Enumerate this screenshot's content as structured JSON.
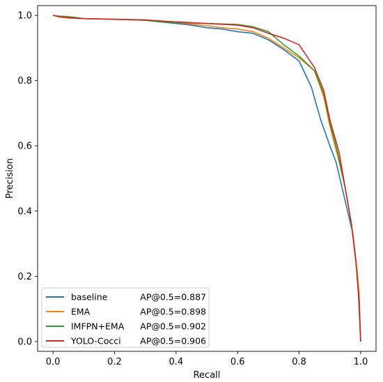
{
  "chart_data": {
    "type": "line",
    "xlabel": "Recall",
    "ylabel": "Precision",
    "xlim": [
      -0.05,
      1.05
    ],
    "ylim": [
      -0.03,
      1.03
    ],
    "xticks": [
      0.0,
      0.2,
      0.4,
      0.6,
      0.8,
      1.0
    ],
    "xtick_labels": [
      "0.0",
      "0.2",
      "0.4",
      "0.6",
      "0.8",
      "1.0"
    ],
    "yticks": [
      0.0,
      0.2,
      0.4,
      0.6,
      0.8,
      1.0
    ],
    "ytick_labels": [
      "0.0",
      "0.2",
      "0.4",
      "0.6",
      "0.8",
      "1.0"
    ],
    "grid": false,
    "legend_position": "lower-left",
    "series": [
      {
        "name": "baseline",
        "ap_label": "AP@0.5=0.887",
        "color": "#1f77b4",
        "x": [
          0.0,
          0.02,
          0.05,
          0.1,
          0.2,
          0.3,
          0.35,
          0.4,
          0.45,
          0.5,
          0.55,
          0.6,
          0.65,
          0.7,
          0.75,
          0.8,
          0.84,
          0.87,
          0.9,
          0.92,
          0.94,
          0.96,
          0.975,
          0.99,
          1.0
        ],
        "y": [
          1.0,
          0.995,
          0.992,
          0.99,
          0.988,
          0.985,
          0.98,
          0.975,
          0.97,
          0.962,
          0.958,
          0.95,
          0.945,
          0.925,
          0.895,
          0.86,
          0.78,
          0.68,
          0.6,
          0.55,
          0.47,
          0.39,
          0.33,
          0.2,
          0.0
        ]
      },
      {
        "name": "EMA",
        "ap_label": "AP@0.5=0.898",
        "color": "#ff7f0e",
        "x": [
          0.0,
          0.02,
          0.05,
          0.1,
          0.2,
          0.3,
          0.4,
          0.5,
          0.55,
          0.6,
          0.65,
          0.7,
          0.75,
          0.8,
          0.85,
          0.88,
          0.9,
          0.925,
          0.95,
          0.97,
          0.985,
          0.995,
          1.0
        ],
        "y": [
          1.0,
          0.995,
          0.992,
          0.99,
          0.988,
          0.986,
          0.978,
          0.968,
          0.962,
          0.958,
          0.95,
          0.93,
          0.9,
          0.87,
          0.83,
          0.75,
          0.66,
          0.57,
          0.47,
          0.36,
          0.25,
          0.15,
          0.0
        ]
      },
      {
        "name": "IMFPN+EMA",
        "ap_label": "AP@0.5=0.902",
        "color": "#2ca02c",
        "x": [
          0.0,
          0.02,
          0.05,
          0.07,
          0.1,
          0.2,
          0.3,
          0.35,
          0.4,
          0.5,
          0.6,
          0.65,
          0.7,
          0.75,
          0.8,
          0.85,
          0.88,
          0.9,
          0.925,
          0.95,
          0.97,
          0.985,
          0.995,
          1.0
        ],
        "y": [
          1.0,
          0.998,
          0.996,
          0.994,
          0.99,
          0.988,
          0.985,
          0.98,
          0.978,
          0.975,
          0.972,
          0.965,
          0.95,
          0.91,
          0.875,
          0.83,
          0.76,
          0.67,
          0.58,
          0.47,
          0.36,
          0.24,
          0.13,
          0.0
        ]
      },
      {
        "name": "YOLO-Cocci",
        "ap_label": "AP@0.5=0.906",
        "color": "#d62728",
        "x": [
          0.0,
          0.02,
          0.05,
          0.1,
          0.2,
          0.3,
          0.4,
          0.5,
          0.6,
          0.65,
          0.7,
          0.75,
          0.8,
          0.85,
          0.88,
          0.9,
          0.93,
          0.95,
          0.97,
          0.985,
          0.995,
          1.0
        ],
        "y": [
          1.0,
          0.996,
          0.993,
          0.99,
          0.988,
          0.986,
          0.98,
          0.975,
          0.97,
          0.962,
          0.945,
          0.93,
          0.91,
          0.84,
          0.77,
          0.68,
          0.58,
          0.47,
          0.36,
          0.24,
          0.12,
          0.0
        ]
      }
    ]
  }
}
